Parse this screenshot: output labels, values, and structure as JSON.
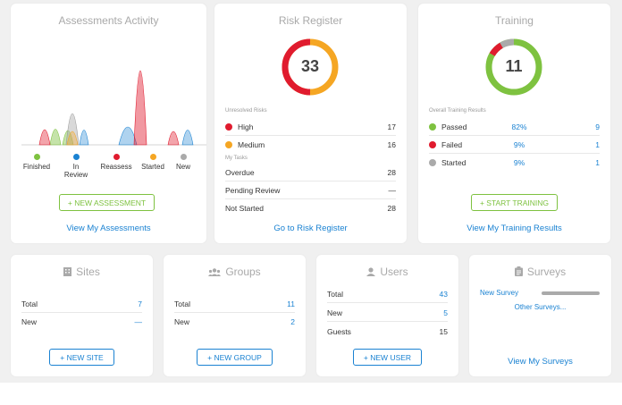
{
  "assessments": {
    "title": "Assessments Activity",
    "legend": [
      {
        "label": "Finished",
        "color": "#7ec240"
      },
      {
        "label": "In Review",
        "color": "#1a82d2"
      },
      {
        "label": "Reassess",
        "color": "#e01b2e"
      },
      {
        "label": "Started",
        "color": "#f5a623"
      },
      {
        "label": "New",
        "color": "#aaaaaa"
      }
    ],
    "new_button": "+ NEW ASSESSMENT",
    "view_link": "View My Assessments"
  },
  "risk": {
    "title": "Risk Register",
    "total": "33",
    "unresolved_label": "Unresolved Risks",
    "levels": [
      {
        "label": "High",
        "value": "17",
        "color": "#e01b2e"
      },
      {
        "label": "Medium",
        "value": "16",
        "color": "#f5a623"
      }
    ],
    "tasks_label": "My Tasks",
    "tasks": [
      {
        "label": "Overdue",
        "value": "28"
      },
      {
        "label": "Pending Review",
        "value": "—"
      },
      {
        "label": "Not Started",
        "value": "28"
      }
    ],
    "link": "Go to Risk Register"
  },
  "training": {
    "title": "Training",
    "total": "11",
    "results_label": "Overall Training Results",
    "results": [
      {
        "label": "Passed",
        "pct": "82%",
        "count": "9",
        "color": "#7ec240"
      },
      {
        "label": "Failed",
        "pct": "9%",
        "count": "1",
        "color": "#e01b2e"
      },
      {
        "label": "Started",
        "pct": "9%",
        "count": "1",
        "color": "#aaaaaa"
      }
    ],
    "start_button": "+ START TRAINING",
    "link": "View My Training Results"
  },
  "sites": {
    "title": "Sites",
    "icon": "building-icon",
    "rows": [
      {
        "label": "Total",
        "value": "7"
      },
      {
        "label": "New",
        "value": "—"
      }
    ],
    "button": "+ NEW SITE"
  },
  "groups": {
    "title": "Groups",
    "icon": "users-icon",
    "rows": [
      {
        "label": "Total",
        "value": "11"
      },
      {
        "label": "New",
        "value": "2"
      }
    ],
    "button": "+ NEW GROUP"
  },
  "users": {
    "title": "Users",
    "icon": "user-icon",
    "rows": [
      {
        "label": "Total",
        "value": "43"
      },
      {
        "label": "New",
        "value": "5"
      },
      {
        "label": "Guests",
        "value": "15"
      }
    ],
    "button": "+ NEW USER"
  },
  "surveys": {
    "title": "Surveys",
    "icon": "clipboard-icon",
    "new_survey": "New Survey",
    "other_link": "Other Surveys...",
    "view_link": "View My Surveys"
  }
}
